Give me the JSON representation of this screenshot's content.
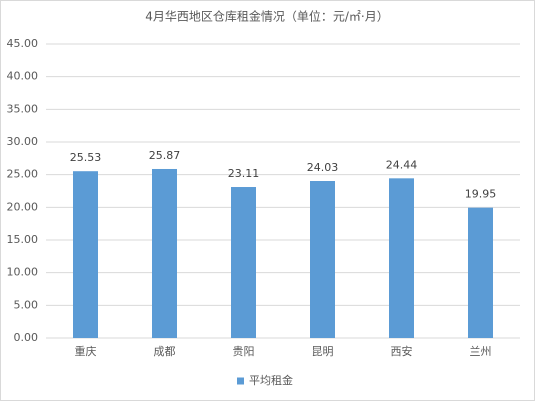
{
  "chart_data": {
    "type": "bar",
    "title": "4月华西地区仓库租金情况（单位：元/㎡·月）",
    "categories": [
      "重庆",
      "成都",
      "贵阳",
      "昆明",
      "西安",
      "兰州"
    ],
    "series": [
      {
        "name": "平均租金",
        "color": "#5b9bd5",
        "values": [
          25.53,
          25.87,
          23.11,
          24.03,
          24.44,
          19.95
        ]
      }
    ],
    "ylim": [
      0,
      45
    ],
    "yticks": [
      {
        "value": 0,
        "label": "0.00"
      },
      {
        "value": 5,
        "label": "5.00"
      },
      {
        "value": 10,
        "label": "10.00"
      },
      {
        "value": 15,
        "label": "15.00"
      },
      {
        "value": 20,
        "label": "20.00"
      },
      {
        "value": 25,
        "label": "25.00"
      },
      {
        "value": 30,
        "label": "30.00"
      },
      {
        "value": 35,
        "label": "35.00"
      },
      {
        "value": 40,
        "label": "40.00"
      },
      {
        "value": 45,
        "label": "45.00"
      }
    ],
    "grid": true,
    "legend": "bottom"
  }
}
